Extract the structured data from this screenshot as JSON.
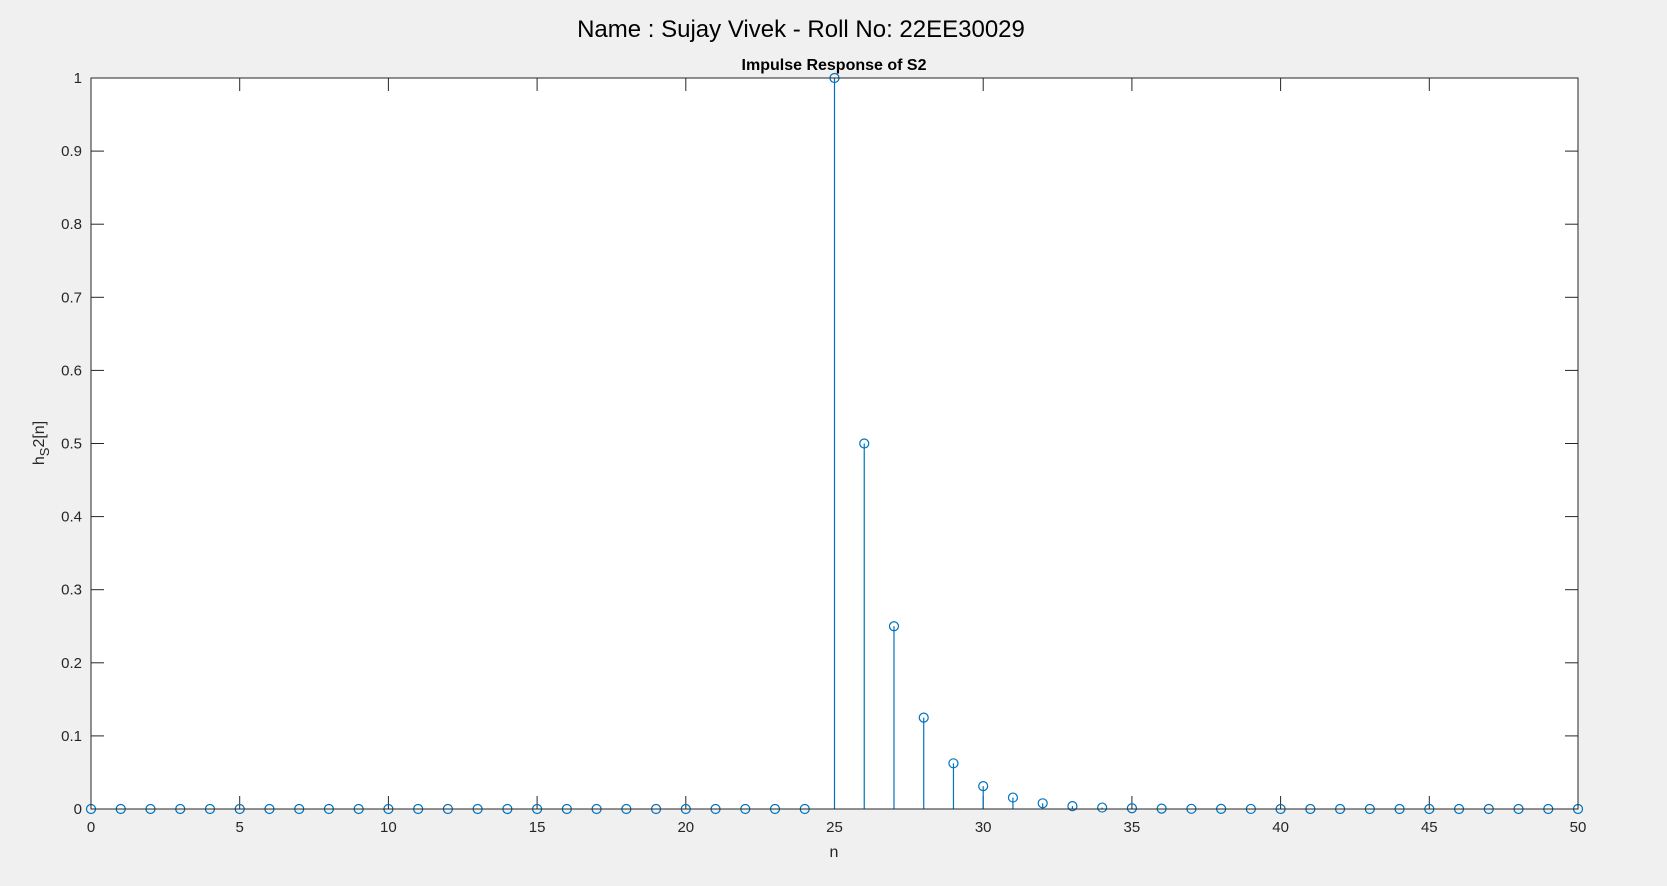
{
  "figure": {
    "sgtitle": "Name : Sujay Vivek - Roll No: 22EE30029"
  },
  "chart_data": {
    "type": "stem",
    "title": "Impulse Response of S2",
    "xlabel": "n",
    "ylabel": {
      "base": "h",
      "subscript": "S",
      "rest": "2[n]"
    },
    "xlim": [
      0,
      50
    ],
    "ylim": [
      0,
      1
    ],
    "xticks": [
      0,
      5,
      10,
      15,
      20,
      25,
      30,
      35,
      40,
      45,
      50
    ],
    "yticks": [
      0,
      0.1,
      0.2,
      0.3,
      0.4,
      0.5,
      0.6,
      0.7,
      0.8,
      0.9,
      1
    ],
    "grid": false,
    "color": "#0072BD",
    "x": [
      0,
      1,
      2,
      3,
      4,
      5,
      6,
      7,
      8,
      9,
      10,
      11,
      12,
      13,
      14,
      15,
      16,
      17,
      18,
      19,
      20,
      21,
      22,
      23,
      24,
      25,
      26,
      27,
      28,
      29,
      30,
      31,
      32,
      33,
      34,
      35,
      36,
      37,
      38,
      39,
      40,
      41,
      42,
      43,
      44,
      45,
      46,
      47,
      48,
      49,
      50
    ],
    "y": [
      0,
      0,
      0,
      0,
      0,
      0,
      0,
      0,
      0,
      0,
      0,
      0,
      0,
      0,
      0,
      0,
      0,
      0,
      0,
      0,
      0,
      0,
      0,
      0,
      0,
      1,
      0.5,
      0.25,
      0.125,
      0.0625,
      0.03125,
      0.015625,
      0.0078125,
      0.00390625,
      0.001953125,
      0.0009765625,
      0.00048828125,
      0.000244140625,
      0.0001220703125,
      6.103515625e-05,
      3.0517578125e-05,
      1.52587890625e-05,
      7.62939453125e-06,
      3.814697265625e-06,
      1.9073486328125e-06,
      9.5367431640625e-07,
      4.76837158203125e-07,
      2.384185791015625e-07,
      1.1920928955078125e-07,
      5.960464477539063e-08,
      2.9802322387695312e-08
    ]
  }
}
